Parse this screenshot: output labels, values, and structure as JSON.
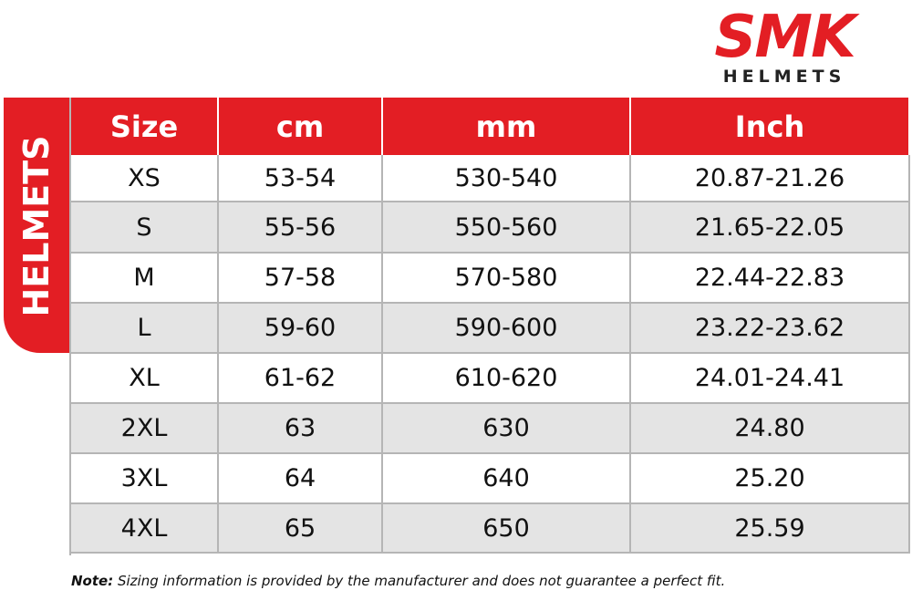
{
  "logo": {
    "brand": "SMK",
    "tagline": "HELMETS"
  },
  "side_label": "HELMETS",
  "table": {
    "header": [
      "Size",
      "cm",
      "mm",
      "Inch"
    ],
    "rows": [
      [
        "XS",
        "53-54",
        "530-540",
        "20.87-21.26"
      ],
      [
        "S",
        "55-56",
        "550-560",
        "21.65-22.05"
      ],
      [
        "M",
        "57-58",
        "570-580",
        "22.44-22.83"
      ],
      [
        "L",
        "59-60",
        "590-600",
        "23.22-23.62"
      ],
      [
        "XL",
        "61-62",
        "610-620",
        "24.01-24.41"
      ],
      [
        "2XL",
        "63",
        "630",
        "24.80"
      ],
      [
        "3XL",
        "64",
        "640",
        "25.20"
      ],
      [
        "4XL",
        "65",
        "650",
        "25.59"
      ]
    ]
  },
  "note": {
    "label": "Note:",
    "text": "Sizing information is provided by the manufacturer and does not guarantee a perfect fit."
  }
}
